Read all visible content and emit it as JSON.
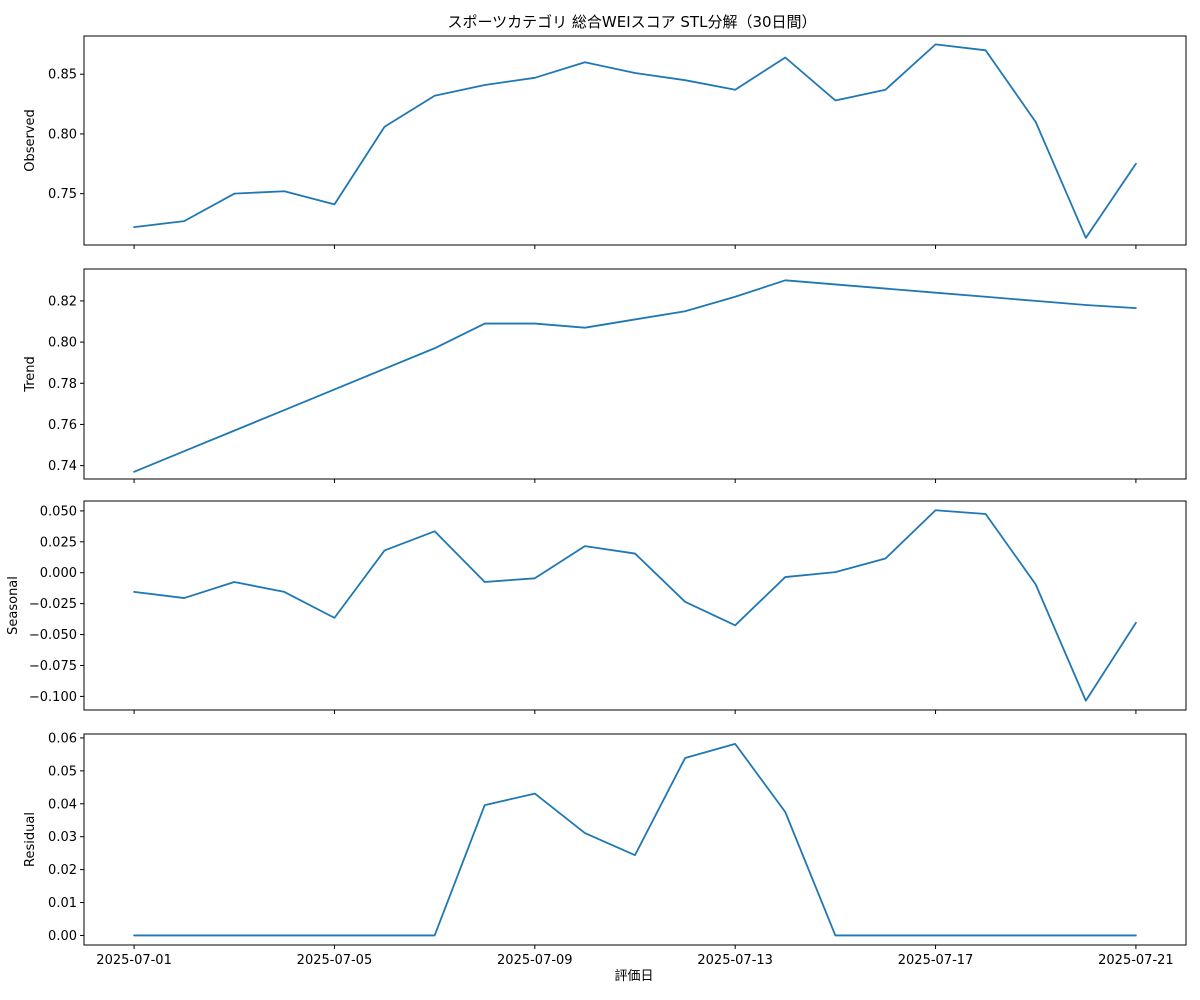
{
  "chart_data": {
    "type": "line",
    "title": "スポーツカテゴリ 総合WEIスコア STL分解（30日間）",
    "xlabel": "評価日",
    "x": [
      "2025-07-01",
      "2025-07-02",
      "2025-07-03",
      "2025-07-04",
      "2025-07-05",
      "2025-07-06",
      "2025-07-07",
      "2025-07-08",
      "2025-07-09",
      "2025-07-10",
      "2025-07-11",
      "2025-07-12",
      "2025-07-13",
      "2025-07-14",
      "2025-07-15",
      "2025-07-16",
      "2025-07-17",
      "2025-07-18",
      "2025-07-19",
      "2025-07-20",
      "2025-07-21"
    ],
    "xticks": [
      "2025-07-01",
      "2025-07-05",
      "2025-07-09",
      "2025-07-13",
      "2025-07-17",
      "2025-07-21"
    ],
    "xlim": [
      "2025-06-30",
      "2025-07-22"
    ],
    "color": "#1f77b4",
    "grid": false,
    "panels": [
      {
        "ylabel": "Observed",
        "ylim": [
          0.707,
          0.882
        ],
        "yticks": [
          0.75,
          0.8,
          0.85
        ],
        "ytick_labels": [
          "0.75",
          "0.80",
          "0.85"
        ],
        "values": [
          0.722,
          0.727,
          0.75,
          0.752,
          0.741,
          0.806,
          0.832,
          0.841,
          0.847,
          0.86,
          0.851,
          0.845,
          0.837,
          0.864,
          0.828,
          0.837,
          0.875,
          0.87,
          0.81,
          0.713,
          0.775
        ]
      },
      {
        "ylabel": "Trend",
        "ylim": [
          0.7335,
          0.8355
        ],
        "yticks": [
          0.74,
          0.76,
          0.78,
          0.8,
          0.82
        ],
        "ytick_labels": [
          "0.74",
          "0.76",
          "0.78",
          "0.80",
          "0.82"
        ],
        "values": [
          0.737,
          0.747,
          0.757,
          0.767,
          0.777,
          0.787,
          0.797,
          0.809,
          0.809,
          0.807,
          0.811,
          0.815,
          0.822,
          0.83,
          0.828,
          0.826,
          0.824,
          0.822,
          0.82,
          0.818,
          0.8165
        ]
      },
      {
        "ylabel": "Seasonal",
        "ylim": [
          -0.111,
          0.058
        ],
        "yticks": [
          -0.1,
          -0.075,
          -0.05,
          -0.025,
          0.0,
          0.025,
          0.05
        ],
        "ytick_labels": [
          "−0.100",
          "−0.075",
          "−0.050",
          "−0.025",
          "0.000",
          "0.025",
          "0.050"
        ],
        "values": [
          -0.0155,
          -0.0205,
          -0.0075,
          -0.0155,
          -0.0365,
          0.018,
          0.0335,
          -0.0075,
          -0.0045,
          0.0215,
          0.0155,
          -0.0235,
          -0.0425,
          -0.0035,
          0.0005,
          0.0115,
          0.0505,
          0.0475,
          -0.0095,
          -0.1035,
          -0.0405
        ]
      },
      {
        "ylabel": "Residual",
        "ylim": [
          -0.0029,
          0.0612
        ],
        "yticks": [
          0.0,
          0.01,
          0.02,
          0.03,
          0.04,
          0.05,
          0.06
        ],
        "ytick_labels": [
          "0.00",
          "0.01",
          "0.02",
          "0.03",
          "0.04",
          "0.05",
          "0.06"
        ],
        "values": [
          0,
          0,
          0,
          0,
          0,
          0,
          0,
          0.0396,
          0.0431,
          0.0311,
          0.0244,
          0.0539,
          0.0582,
          0.0375,
          0,
          0,
          0,
          0,
          0,
          0,
          0
        ]
      }
    ]
  }
}
